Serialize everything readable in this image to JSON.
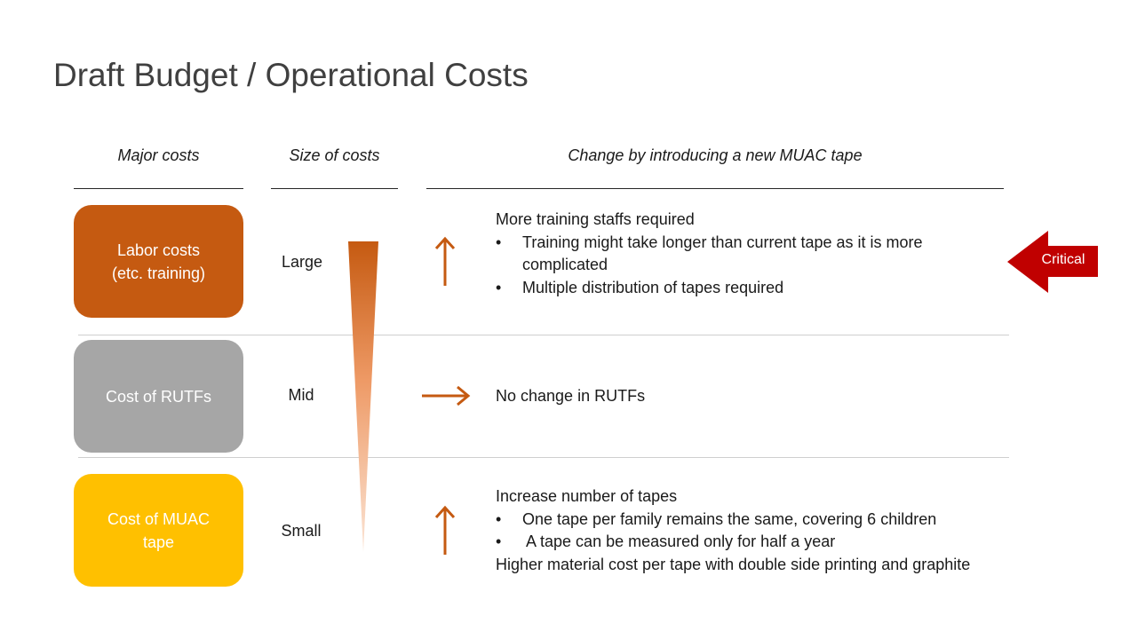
{
  "slide": {
    "title": "Draft Budget / Operational Costs"
  },
  "headers": {
    "major_costs": "Major costs",
    "size_of_costs": "Size of costs",
    "change": "Change by introducing a new MUAC tape"
  },
  "rows": [
    {
      "label_lines": [
        "Labor costs",
        "(etc. training)"
      ],
      "color": "#C55A11",
      "size": "Large",
      "trend": "up",
      "details": [
        {
          "text": "More training staffs required",
          "bullet": false
        },
        {
          "text": "Training might take longer than current tape as it is more",
          "bullet": true
        },
        {
          "text": "complicated",
          "bullet": false,
          "indent": true
        },
        {
          "text": "Multiple distribution of  tapes required",
          "bullet": true
        }
      ]
    },
    {
      "label_lines": [
        "Cost of RUTFs"
      ],
      "color": "#A6A6A6",
      "size": "Mid",
      "trend": "flat",
      "details": [
        {
          "text": "No change in RUTFs",
          "bullet": false
        }
      ]
    },
    {
      "label_lines": [
        "Cost of MUAC",
        "tape"
      ],
      "color": "#FFC000",
      "size": "Small",
      "trend": "up",
      "details": [
        {
          "text": "Increase number of tapes",
          "bullet": false
        },
        {
          "text": "One tape per family remains the same, covering 6 children",
          "bullet": true
        },
        {
          "text": " A tape can be measured only for half a year",
          "bullet": true
        },
        {
          "text": "Higher material cost per tape with double side printing and graphite",
          "bullet": false
        }
      ]
    }
  ],
  "callout": {
    "label": "Critical",
    "color": "#C00000"
  },
  "colors": {
    "arrow": "#C55A11",
    "gradient_top": "#C55A11",
    "gradient_bottom": "#FBE5D6"
  },
  "icons": {
    "up": "arrow-up-icon",
    "flat": "arrow-right-icon",
    "callout": "left-arrow-callout"
  }
}
